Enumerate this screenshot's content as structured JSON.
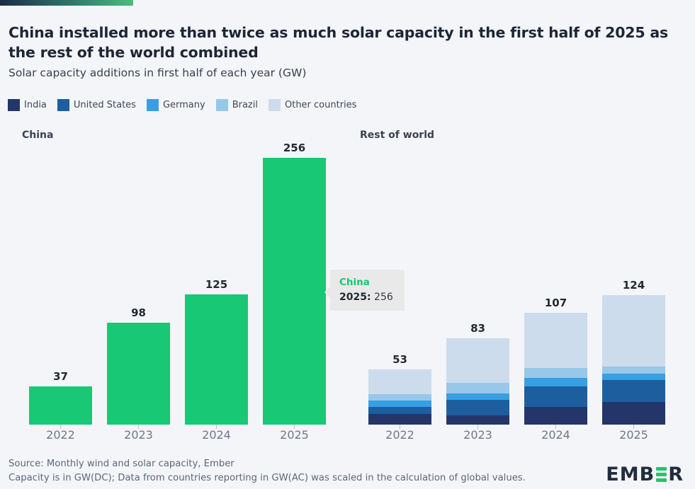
{
  "header": {
    "title": "China installed more than twice as much solar capacity in the first half of 2025 as the rest of the world combined",
    "subtitle": "Solar capacity additions in first half of each year (GW)"
  },
  "legend": {
    "items": [
      {
        "label": "India",
        "color": "#243669"
      },
      {
        "label": "United States",
        "color": "#1d5f9e"
      },
      {
        "label": "Germany",
        "color": "#379fe3"
      },
      {
        "label": "Brazil",
        "color": "#97c8e9"
      },
      {
        "label": "Other countries",
        "color": "#ccdcec"
      }
    ]
  },
  "chart_data": {
    "type": "bar",
    "unit": "GW",
    "title": "Solar capacity additions in first half of each year (GW)",
    "ylim": [
      0,
      256
    ],
    "grid": false,
    "legend_position": "top",
    "panels": [
      {
        "id": "china",
        "title": "China",
        "categories": [
          "2022",
          "2023",
          "2024",
          "2025"
        ],
        "values": [
          37,
          98,
          125,
          256
        ],
        "bar_color": "#18c874"
      },
      {
        "id": "rest",
        "title": "Rest of world",
        "categories": [
          "2022",
          "2023",
          "2024",
          "2025"
        ],
        "stacked": true,
        "totals": [
          53,
          83,
          107,
          124
        ],
        "series": [
          {
            "name": "India",
            "color": "#243669",
            "values": [
              10,
              9,
              17,
              22
            ]
          },
          {
            "name": "United States",
            "color": "#1d5f9e",
            "values": [
              7,
              15,
              20,
              21
            ]
          },
          {
            "name": "Germany",
            "color": "#379fe3",
            "values": [
              6,
              6,
              8,
              6
            ]
          },
          {
            "name": "Brazil",
            "color": "#97c8e9",
            "values": [
              6,
              10,
              9,
              7
            ]
          },
          {
            "name": "Other countries",
            "color": "#ccdcec",
            "values": [
              24,
              43,
              53,
              68
            ]
          }
        ]
      }
    ]
  },
  "tooltip": {
    "title": "China",
    "label": "2025:",
    "value": "256"
  },
  "footer": {
    "line1": "Source: Monthly wind and solar capacity, Ember",
    "line2": "Capacity is in GW(DC); Data from countries reporting in GW(AC) was scaled in the calculation of global values."
  },
  "logo": {
    "left": "EMB",
    "right": "R"
  },
  "colors": {
    "accent_green": "#18c874",
    "background": "#f4f5f9"
  }
}
